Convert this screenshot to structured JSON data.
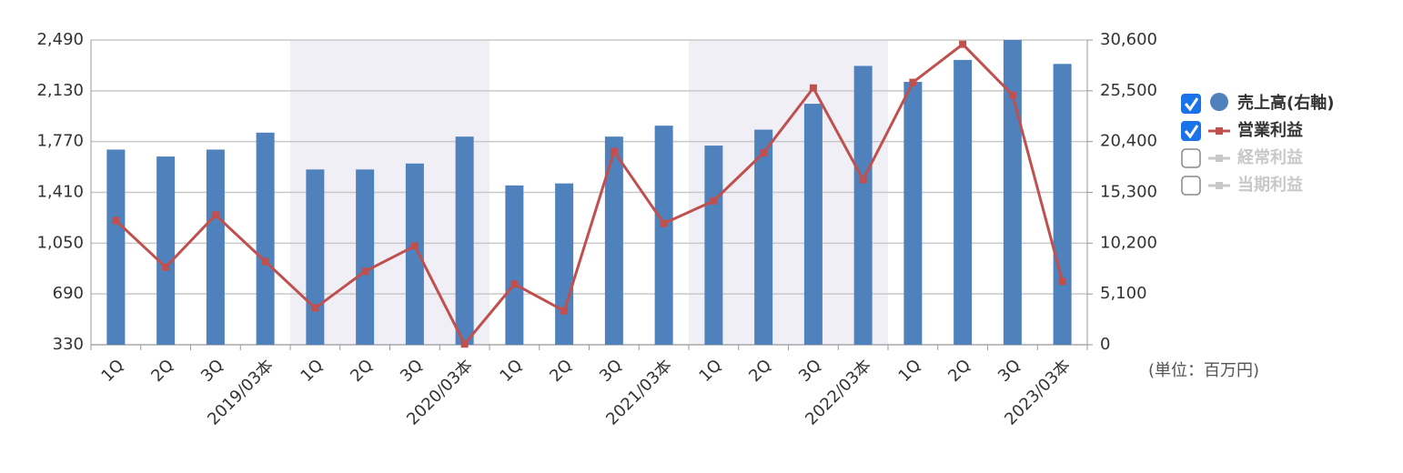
{
  "chart_data": {
    "type": "bar_line",
    "categories": [
      "1Q",
      "2Q",
      "3Q",
      "2019/03本",
      "1Q",
      "2Q",
      "3Q",
      "2020/03本",
      "1Q",
      "2Q",
      "3Q",
      "2021/03本",
      "1Q",
      "2Q",
      "3Q",
      "2022/03本",
      "1Q",
      "2Q",
      "3Q",
      "2023/03本"
    ],
    "series": [
      {
        "name": "売上高(右軸)",
        "color": "#4f81bd",
        "type": "bar",
        "axis": "y2",
        "values": [
          19600,
          18900,
          19600,
          21300,
          17600,
          17600,
          18200,
          20900,
          16000,
          16200,
          20900,
          22000,
          20000,
          21600,
          24200,
          28000,
          26400,
          28600,
          30600,
          28200
        ]
      },
      {
        "name": "営業利益",
        "color": "#c0504d",
        "type": "line",
        "values": [
          1210,
          880,
          1250,
          920,
          590,
          850,
          1030,
          335,
          760,
          570,
          1700,
          1190,
          1350,
          1690,
          2150,
          1500,
          2190,
          2460,
          2100,
          780
        ]
      }
    ],
    "inactive_series": [
      "経常利益",
      "当期利益"
    ],
    "ylim": [
      330,
      2490
    ],
    "yticks": [
      {
        "value": 330,
        "label": "330"
      },
      {
        "value": 690,
        "label": "690"
      },
      {
        "value": 1050,
        "label": "1,050"
      },
      {
        "value": 1410,
        "label": "1,410"
      },
      {
        "value": 1770,
        "label": "1,770"
      },
      {
        "value": 2130,
        "label": "2,130"
      },
      {
        "value": 2490,
        "label": "2,490"
      }
    ],
    "y2lim": [
      0,
      30600
    ],
    "y2ticks": [
      0,
      {
        "value": 5100,
        "label": "5,100"
      },
      {
        "value": 10200,
        "label": "10,200"
      },
      {
        "value": 15300,
        "label": "15,300"
      },
      {
        "value": 20400,
        "label": "20,400"
      },
      {
        "value": 25500,
        "label": "25,500"
      },
      {
        "value": 30600,
        "label": "30,600"
      }
    ],
    "grid": true,
    "annotation": "(単位：百万円)"
  }
}
